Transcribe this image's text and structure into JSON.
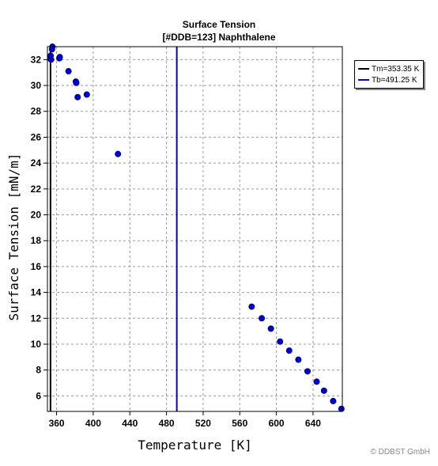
{
  "chart_data": {
    "type": "scatter",
    "title": "Surface Tension",
    "subtitle": "[#DDB=123] Naphthalene",
    "xlabel": "Temperature [K]",
    "ylabel": "Surface Tension [mN/m]",
    "xlim": [
      350,
      672
    ],
    "ylim": [
      4.8,
      33
    ],
    "xticks": [
      360,
      400,
      440,
      480,
      520,
      560,
      600,
      640
    ],
    "yticks": [
      6,
      8,
      10,
      12,
      14,
      16,
      18,
      20,
      22,
      24,
      26,
      28,
      30,
      32
    ],
    "grid": true,
    "legend_position": "top-right",
    "point_color": "#0000cc",
    "points": [
      {
        "x": 353,
        "y": 32.1
      },
      {
        "x": 353.5,
        "y": 32.3
      },
      {
        "x": 354,
        "y": 32.0
      },
      {
        "x": 355,
        "y": 32.8
      },
      {
        "x": 355.5,
        "y": 33.0
      },
      {
        "x": 363,
        "y": 32.1
      },
      {
        "x": 363.5,
        "y": 32.2
      },
      {
        "x": 373,
        "y": 31.1
      },
      {
        "x": 381,
        "y": 30.3
      },
      {
        "x": 381.5,
        "y": 30.2
      },
      {
        "x": 383,
        "y": 29.1
      },
      {
        "x": 393,
        "y": 29.3
      },
      {
        "x": 427,
        "y": 24.7
      },
      {
        "x": 573,
        "y": 12.9
      },
      {
        "x": 584,
        "y": 12.0
      },
      {
        "x": 594,
        "y": 11.2
      },
      {
        "x": 604,
        "y": 10.2
      },
      {
        "x": 614,
        "y": 9.5
      },
      {
        "x": 624,
        "y": 8.8
      },
      {
        "x": 634,
        "y": 7.9
      },
      {
        "x": 644,
        "y": 7.1
      },
      {
        "x": 652,
        "y": 6.4
      },
      {
        "x": 662,
        "y": 5.6
      },
      {
        "x": 671,
        "y": 5.0
      }
    ],
    "vlines": [
      {
        "name": "Tm=353.35 K",
        "x": 353.35,
        "color": "#000000"
      },
      {
        "name": "Tb=491.25 K",
        "x": 491.25,
        "color": "#0000cc"
      }
    ]
  },
  "copyright": "© DDBST GmbH"
}
